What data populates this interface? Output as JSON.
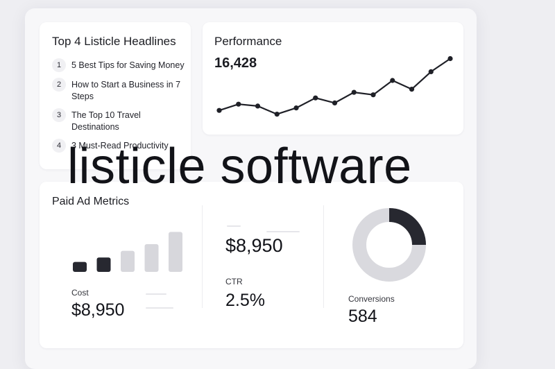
{
  "headlines": {
    "title": "Top 4 Listicle Headlines",
    "items": [
      {
        "num": "1",
        "text": "5 Best Tips for Saving Money"
      },
      {
        "num": "2",
        "text": "How to Start a Business in 7 Steps"
      },
      {
        "num": "3",
        "text": "The Top 10 Travel Destinations"
      },
      {
        "num": "4",
        "text": "3 Must-Read Productivity"
      }
    ]
  },
  "performance": {
    "title": "Performance",
    "value": "16,428",
    "trend": [
      12,
      22,
      19,
      6,
      16,
      32,
      24,
      41,
      37,
      60,
      46,
      74,
      95
    ]
  },
  "metrics": {
    "title": "Paid Ad Metrics",
    "bars": [
      {
        "value": 18,
        "tone": "dark"
      },
      {
        "value": 26,
        "tone": "dark"
      },
      {
        "value": 38,
        "tone": "light"
      },
      {
        "value": 50,
        "tone": "light"
      },
      {
        "value": 72,
        "tone": "light"
      }
    ],
    "cost_label": "Cost",
    "cost_value": "$8,950",
    "spend_value": "$8,950",
    "ctr_label": "CTR",
    "ctr_value": "2.5%",
    "conversions_label": "Conversions",
    "conversions_value": "584",
    "donut_fraction": 0.25
  },
  "overlay_text": "listicle software",
  "colors": {
    "dark": "#272830",
    "light": "#d7d7dc",
    "line": "#1f2027",
    "donut_bg": "#d9d9de"
  }
}
